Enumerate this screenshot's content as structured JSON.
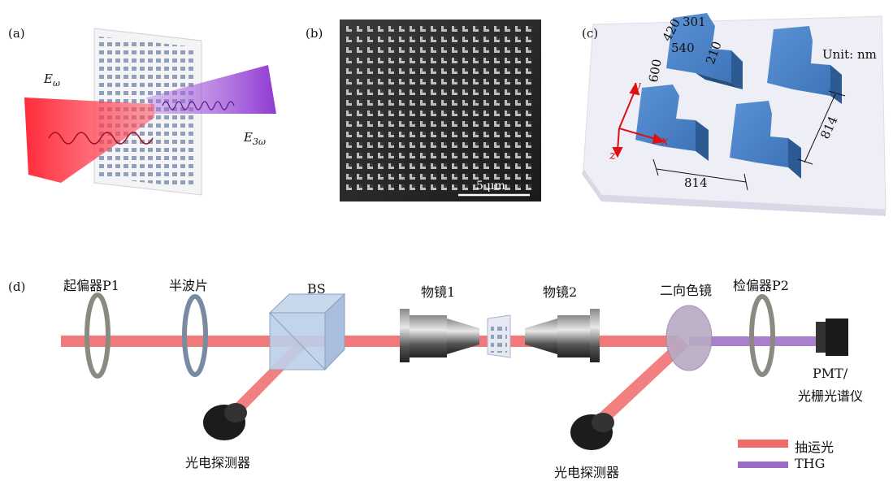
{
  "panels": {
    "a": {
      "tag": "(a)",
      "e_in": "E",
      "e_in_sub": "ω",
      "e_out": "E",
      "e_out_sub": "3ω"
    },
    "b": {
      "tag": "(b)",
      "scale_bar": "5 μm"
    },
    "c": {
      "tag": "(c)",
      "dims": [
        "420",
        "301",
        "540",
        "210",
        "600"
      ],
      "unit": "Unit: nm",
      "period_x": "814",
      "period_y": "814",
      "axes": [
        "y",
        "x",
        "z"
      ]
    },
    "d": {
      "tag": "(d)"
    }
  },
  "setup": {
    "polarizer1": "起偏器P1",
    "halfwave": "半波片",
    "bs": "BS",
    "objective1": "物镜1",
    "objective2": "物镜2",
    "dichroic": "二向色镜",
    "analyzer": "检偏器P2",
    "pmt_line1": "PMT/",
    "pmt_line2": "光栅光谱仪",
    "detector1": "光电探测器",
    "detector2": "光电探测器"
  },
  "legend": [
    {
      "label": "抽运光",
      "color": "#f06a6a"
    },
    {
      "label": "THG",
      "color": "#9a6ac4"
    }
  ],
  "colors": {
    "pump": "#e8384a",
    "thg": "#9b59d0",
    "meta": "#3f74b8"
  }
}
